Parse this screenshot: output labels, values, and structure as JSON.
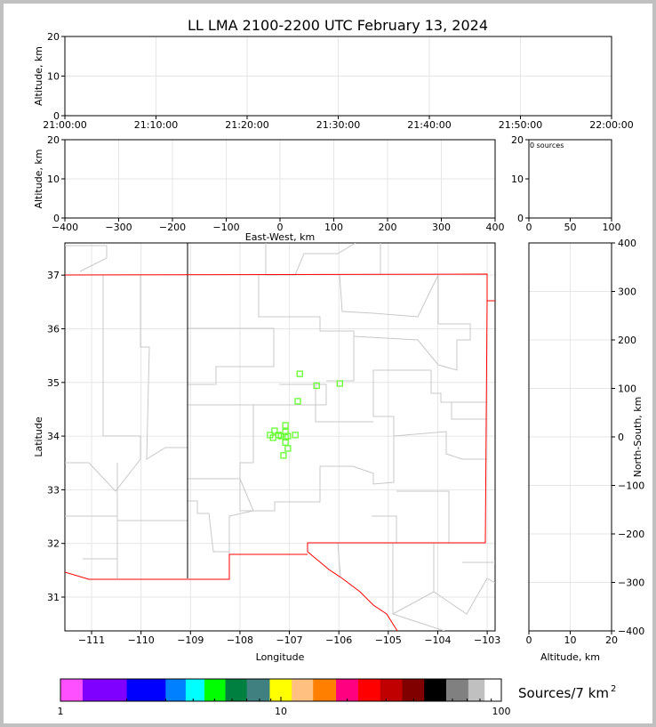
{
  "title": "LL LMA 2100-2200 UTC February 13, 2024",
  "chart_data": [
    {
      "panel": "time-altitude",
      "type": "scatter",
      "xlabel": "",
      "ylabel": "Altitude, km",
      "xlim": [
        "21:00:00",
        "22:00:00"
      ],
      "ylim": [
        0,
        20
      ],
      "xticks": [
        "21:00:00",
        "21:10:00",
        "21:20:00",
        "21:30:00",
        "21:40:00",
        "21:50:00",
        "22:00:00"
      ],
      "yticks": [
        0,
        10,
        20
      ],
      "grid": true,
      "points": []
    },
    {
      "panel": "east-west-altitude",
      "type": "scatter",
      "xlabel": "East-West, km",
      "ylabel": "Altitude, km",
      "xlim": [
        -400,
        400
      ],
      "ylim": [
        0,
        20
      ],
      "xticks": [
        -400,
        -300,
        -200,
        -100,
        0,
        100,
        200,
        300,
        400
      ],
      "yticks": [
        0,
        10,
        20
      ],
      "grid": true,
      "points": []
    },
    {
      "panel": "histogram",
      "type": "bar",
      "annotation": "0 sources",
      "xlim": [
        0,
        100
      ],
      "ylim": [
        0,
        20
      ],
      "xticks": [
        0,
        50,
        100
      ],
      "yticks": [
        0,
        10,
        20
      ]
    },
    {
      "panel": "plan-view",
      "type": "scatter",
      "xlabel": "Longitude",
      "ylabel": "Latitude",
      "xlim": [
        -111.54,
        -102.84
      ],
      "ylim": [
        30.37,
        37.6
      ],
      "xticks": [
        -111,
        -110,
        -109,
        -108,
        -107,
        -106,
        -105,
        -104,
        -103
      ],
      "yticks": [
        31,
        32,
        33,
        34,
        35,
        36,
        37
      ],
      "grid": true,
      "marker_color": "#66ff33",
      "points": [
        [
          -106.79,
          35.16
        ],
        [
          -106.45,
          34.94
        ],
        [
          -105.98,
          34.98
        ],
        [
          -106.83,
          34.65
        ],
        [
          -107.08,
          34.2
        ],
        [
          -107.08,
          34.08
        ],
        [
          -107.3,
          34.1
        ],
        [
          -107.39,
          34.02
        ],
        [
          -107.33,
          33.97
        ],
        [
          -107.22,
          34.02
        ],
        [
          -107.17,
          34.0
        ],
        [
          -107.08,
          33.98
        ],
        [
          -107.03,
          34.0
        ],
        [
          -106.88,
          34.02
        ],
        [
          -107.08,
          33.88
        ],
        [
          -107.03,
          33.77
        ],
        [
          -107.12,
          33.64
        ]
      ]
    },
    {
      "panel": "altitude-north-south",
      "type": "scatter",
      "xlabel": "Altitude, km",
      "ylabel": "North-South, km",
      "xlim": [
        0,
        20
      ],
      "ylim": [
        -400,
        400
      ],
      "xticks": [
        0,
        10,
        20
      ],
      "yticks": [
        -400,
        -300,
        -200,
        -100,
        0,
        100,
        200,
        300,
        400
      ],
      "grid": true,
      "points": []
    }
  ],
  "colorbar": {
    "label": "Sources/7 km",
    "label_sup": "2",
    "ticks": [
      "1",
      "10",
      "100"
    ],
    "colors": [
      "#ff50ff",
      "#8000ff",
      "#0000ff",
      "#0080ff",
      "#00ffff",
      "#00ff00",
      "#008040",
      "#408080",
      "#ffff00",
      "#ffc080",
      "#ff8000",
      "#ff0080",
      "#ff0000",
      "#c00000",
      "#800000",
      "#000000",
      "#808080",
      "#c0c0c0",
      "#ffffff"
    ]
  }
}
